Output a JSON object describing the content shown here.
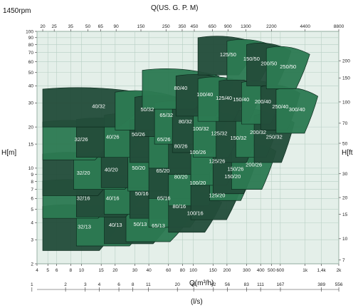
{
  "chart_data": {
    "type": "area",
    "title": "1450rpm",
    "xlabel": "Q(m³/h)",
    "x2label": "Q(US. G. P. M)",
    "x3label": "(l/s)",
    "ylabel": "H[m]",
    "y2label": "H[ft",
    "x_scale": "log",
    "y_scale": "log",
    "xlim": [
      4,
      2000
    ],
    "ylim": [
      2,
      100
    ],
    "grid": true,
    "colors": {
      "background": "#e4efe9",
      "grid": "#b8cfc4",
      "dark": "#234d3a",
      "mid": "#2d7a52",
      "bright": "#1fa868",
      "outline": "#0d2b1e"
    },
    "x_ticks": [
      "4",
      "5",
      "6",
      "8",
      "10",
      "15",
      "20",
      "30",
      "40",
      "60",
      "80",
      "100",
      "150",
      "200",
      "300",
      "400",
      "500",
      "600",
      "1k",
      "1,4k",
      "2k"
    ],
    "x_tick_values": [
      4,
      5,
      6,
      8,
      10,
      15,
      20,
      30,
      40,
      60,
      80,
      100,
      150,
      200,
      300,
      400,
      500,
      600,
      1000,
      1400,
      2000
    ],
    "y_ticks": [
      "2",
      "3",
      "4",
      "5",
      "6",
      "7",
      "8",
      "9",
      "10",
      "15",
      "20",
      "30",
      "40",
      "50",
      "60",
      "70",
      "80",
      "90",
      "100"
    ],
    "y_tick_values": [
      2,
      3,
      4,
      5,
      6,
      7,
      8,
      9,
      10,
      15,
      20,
      30,
      40,
      50,
      60,
      70,
      80,
      90,
      100
    ],
    "top_ticks": [
      "20",
      "25",
      "35",
      "50",
      "65",
      "90",
      "150",
      "250",
      "350",
      "450",
      "650",
      "900",
      "1300",
      "2200",
      "4400",
      "8800"
    ],
    "top_tick_q": [
      4.5,
      5.7,
      8,
      11.4,
      14.8,
      20.4,
      34,
      57,
      79.5,
      102,
      148,
      204,
      295,
      500,
      1000,
      2000
    ],
    "right_ticks": [
      "200",
      "150",
      "100",
      "70",
      "50",
      "30",
      "20",
      "15",
      "10",
      "7"
    ],
    "right_tick_h": [
      61,
      45.7,
      30.5,
      21.3,
      15.2,
      9.1,
      6.1,
      4.6,
      3.05,
      2.13
    ],
    "ls_ticks": [
      "1",
      "2",
      "3",
      "4",
      "6",
      "8",
      "11",
      "20",
      "28",
      "42",
      "56",
      "83",
      "111",
      "167",
      "389",
      "556"
    ],
    "ls_tick_q": [
      3.6,
      7.2,
      10.8,
      14.4,
      21.6,
      28.8,
      39.6,
      72,
      100.8,
      151.2,
      201.6,
      298.8,
      399.6,
      601.2,
      1400,
      2001.6
    ],
    "series": [
      {
        "name": "32/13",
        "q": [
          4.5,
          25
        ],
        "h": [
          2.5,
          5.6
        ],
        "shade": "dark"
      },
      {
        "name": "40/13",
        "q": [
          9,
          45
        ],
        "h": [
          2.7,
          5.5
        ],
        "shade": "mid"
      },
      {
        "name": "50/13",
        "q": [
          16,
          70
        ],
        "h": [
          2.8,
          5.4
        ],
        "shade": "dark"
      },
      {
        "name": "65/13",
        "q": [
          25,
          95
        ],
        "h": [
          2.9,
          5.0
        ],
        "shade": "mid"
      },
      {
        "name": "32/16",
        "q": [
          4.5,
          24
        ],
        "h": [
          4.3,
          8.5
        ],
        "shade": "mid"
      },
      {
        "name": "40/16",
        "q": [
          9,
          40
        ],
        "h": [
          4.4,
          8.3
        ],
        "shade": "dark"
      },
      {
        "name": "50/16",
        "q": [
          16,
          75
        ],
        "h": [
          4.6,
          9.2
        ],
        "shade": "mid"
      },
      {
        "name": "65/16",
        "q": [
          27,
          110
        ],
        "h": [
          4.3,
          8.5
        ],
        "shade": "dark"
      },
      {
        "name": "80/16",
        "q": [
          40,
          140
        ],
        "h": [
          3.7,
          7.5
        ],
        "shade": "mid"
      },
      {
        "name": "100/16",
        "q": [
          60,
          180
        ],
        "h": [
          3.4,
          6.5
        ],
        "shade": "dark"
      },
      {
        "name": "32/20",
        "q": [
          4.5,
          24
        ],
        "h": [
          6.3,
          13.5
        ],
        "shade": "dark"
      },
      {
        "name": "40/20",
        "q": [
          8.5,
          40
        ],
        "h": [
          7.0,
          13.5
        ],
        "shade": "mid"
      },
      {
        "name": "50/20",
        "q": [
          15,
          70
        ],
        "h": [
          7.2,
          14.0
        ],
        "shade": "dark"
      },
      {
        "name": "65/20",
        "q": [
          26,
          110
        ],
        "h": [
          6.8,
          13.5
        ],
        "shade": "mid"
      },
      {
        "name": "80/20",
        "q": [
          40,
          150
        ],
        "h": [
          6.0,
          12.5
        ],
        "shade": "dark"
      },
      {
        "name": "100/20",
        "q": [
          60,
          200
        ],
        "h": [
          5.3,
          11.5
        ],
        "shade": "mid"
      },
      {
        "name": "125/20",
        "q": [
          95,
          280
        ],
        "h": [
          4.2,
          9.5
        ],
        "shade": "dark"
      },
      {
        "name": "150/20",
        "q": [
          140,
          360
        ],
        "h": [
          5.8,
          13.0
        ],
        "shade": "mid"
      },
      {
        "name": "32/26",
        "q": [
          4.5,
          22
        ],
        "h": [
          11.5,
          23
        ],
        "shade": "mid"
      },
      {
        "name": "40/26",
        "q": [
          9,
          40
        ],
        "h": [
          12,
          24
        ],
        "shade": "dark"
      },
      {
        "name": "50/26",
        "q": [
          16,
          65
        ],
        "h": [
          12,
          26
        ],
        "shade": "mid"
      },
      {
        "name": "65/26",
        "q": [
          27,
          110
        ],
        "h": [
          11,
          24
        ],
        "shade": "dark"
      },
      {
        "name": "80/26",
        "q": [
          40,
          150
        ],
        "h": [
          10,
          21
        ],
        "shade": "mid"
      },
      {
        "name": "100/26",
        "q": [
          60,
          200
        ],
        "h": [
          9,
          19
        ],
        "shade": "dark"
      },
      {
        "name": "125/26",
        "q": [
          95,
          280
        ],
        "h": [
          7.5,
          17
        ],
        "shade": "mid"
      },
      {
        "name": "150/26",
        "q": [
          150,
          380
        ],
        "h": [
          6.5,
          15
        ],
        "shade": "dark"
      },
      {
        "name": "200/26",
        "q": [
          220,
          550
        ],
        "h": [
          7.0,
          16
        ],
        "shade": "mid"
      },
      {
        "name": "40/32",
        "q": [
          4.5,
          45
        ],
        "h": [
          20,
          40
        ],
        "shade": "dark"
      },
      {
        "name": "50/32",
        "q": [
          20,
          75
        ],
        "h": [
          19,
          38
        ],
        "shade": "mid"
      },
      {
        "name": "65/32",
        "q": [
          30,
          110
        ],
        "h": [
          17,
          35
        ],
        "shade": "dark"
      },
      {
        "name": "80/32",
        "q": [
          45,
          160
        ],
        "h": [
          15,
          32
        ],
        "shade": "mid"
      },
      {
        "name": "100/32",
        "q": [
          65,
          210
        ],
        "h": [
          13,
          29
        ],
        "shade": "dark"
      },
      {
        "name": "125/32",
        "q": [
          100,
          290
        ],
        "h": [
          12,
          27
        ],
        "shade": "mid"
      },
      {
        "name": "150/32",
        "q": [
          160,
          400
        ],
        "h": [
          11,
          25
        ],
        "shade": "dark"
      },
      {
        "name": "200/32",
        "q": [
          240,
          600
        ],
        "h": [
          12,
          28
        ],
        "shade": "mid"
      },
      {
        "name": "250/32",
        "q": [
          350,
          800
        ],
        "h": [
          11,
          26
        ],
        "shade": "dark"
      },
      {
        "name": "80/40",
        "q": [
          35,
          170
        ],
        "h": [
          27,
          55
        ],
        "shade": "mid"
      },
      {
        "name": "100/40",
        "q": [
          70,
          230
        ],
        "h": [
          24,
          50
        ],
        "shade": "dark"
      },
      {
        "name": "125/40",
        "q": [
          110,
          320
        ],
        "h": [
          22,
          48
        ],
        "shade": "mid"
      },
      {
        "name": "150/40",
        "q": [
          170,
          420
        ],
        "h": [
          22,
          46
        ],
        "shade": "dark"
      },
      {
        "name": "200/40",
        "q": [
          270,
          650
        ],
        "h": [
          21,
          45
        ],
        "shade": "mid"
      },
      {
        "name": "250/40",
        "q": [
          400,
          900
        ],
        "h": [
          19,
          42
        ],
        "shade": "dark"
      },
      {
        "name": "300/40",
        "q": [
          550,
          1300
        ],
        "h": [
          18,
          40
        ],
        "shade": "mid"
      },
      {
        "name": "125/50",
        "q": [
          110,
          380
        ],
        "h": [
          48,
          95
        ],
        "shade": "dark"
      },
      {
        "name": "150/50",
        "q": [
          200,
          550
        ],
        "h": [
          44,
          90
        ],
        "shade": "mid"
      },
      {
        "name": "200/50",
        "q": [
          300,
          750
        ],
        "h": [
          40,
          85
        ],
        "shade": "dark"
      },
      {
        "name": "250/50",
        "q": [
          450,
          1100
        ],
        "h": [
          38,
          80
        ],
        "shade": "mid"
      }
    ]
  }
}
